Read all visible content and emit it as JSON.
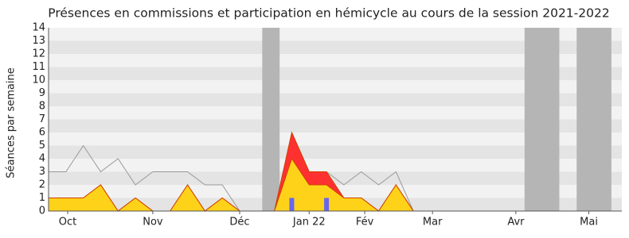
{
  "chart_data": {
    "type": "area",
    "title": "Présences en commissions et participation en hémicycle au cours de la session 2021-2022",
    "y_label": "Séances par semaine",
    "x": [
      0,
      1,
      2,
      3,
      4,
      5,
      6,
      7,
      8,
      9,
      10,
      11,
      12,
      13,
      14,
      15,
      16,
      17,
      18,
      19,
      20,
      21
    ],
    "xlim": [
      0,
      33
    ],
    "xticks": [
      {
        "value": 1.1,
        "label": "Oct"
      },
      {
        "value": 6.0,
        "label": "Nov"
      },
      {
        "value": 11.0,
        "label": "Déc"
      },
      {
        "value": 15.0,
        "label": "Jan 22"
      },
      {
        "value": 18.2,
        "label": "Fév"
      },
      {
        "value": 22.1,
        "label": "Mar"
      },
      {
        "value": 26.9,
        "label": "Avr"
      },
      {
        "value": 31.1,
        "label": "Mai"
      }
    ],
    "ylim": [
      0,
      14
    ],
    "yticks": [
      0,
      1,
      2,
      3,
      4,
      5,
      6,
      7,
      8,
      9,
      10,
      11,
      12,
      13,
      14
    ],
    "grid": true,
    "shaded_periods": [
      [
        12.3,
        13.3
      ],
      [
        27.4,
        29.4
      ],
      [
        30.4,
        32.4
      ]
    ],
    "series": [
      {
        "color": "#999999",
        "style": "line",
        "values": [
          3,
          3,
          5,
          3,
          4,
          2,
          3,
          3,
          3,
          2,
          2,
          0,
          null,
          null,
          6,
          3,
          3,
          2,
          3,
          2,
          3,
          0
        ]
      },
      {
        "color": "#ff3030",
        "style": "area",
        "values": [
          1,
          1,
          1,
          2,
          0,
          1,
          0,
          0,
          2,
          0,
          1,
          0,
          0,
          0,
          6,
          3,
          3,
          1,
          1,
          0,
          2,
          0
        ]
      },
      {
        "color": "#ffd21a",
        "style": "area",
        "values": [
          1,
          1,
          1,
          2,
          0,
          1,
          0,
          0,
          2,
          0,
          1,
          0,
          0,
          0,
          4,
          2,
          2,
          1,
          1,
          0,
          2,
          0
        ]
      },
      {
        "color": "#6666ee",
        "style": "bar",
        "values": [
          0,
          0,
          0,
          0,
          0,
          0,
          0,
          0,
          0,
          0,
          0,
          0,
          0,
          0,
          1,
          0,
          1,
          0,
          0,
          0,
          0,
          0
        ]
      }
    ]
  }
}
